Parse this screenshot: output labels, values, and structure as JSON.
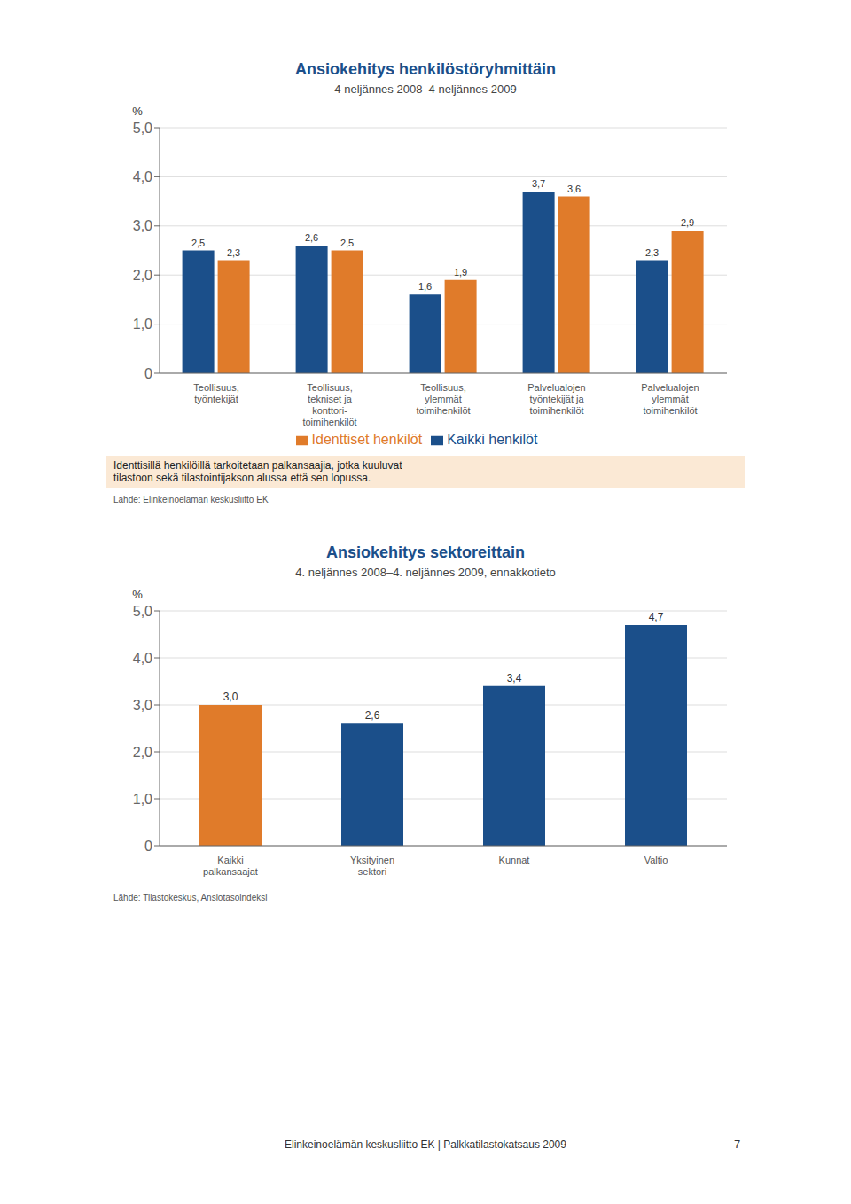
{
  "chart_data": [
    {
      "type": "bar",
      "title": "Ansiokehitys henkilöstöryhmittäin",
      "subtitle": "4 neljännes 2008–4 neljännes 2009",
      "categories": [
        "Teollisuus,\ntyöntekijät",
        "Teollisuus,\ntekniset ja\nkonttori-\ntoimihenkilöt",
        "Teollisuus,\nylemmät\ntoimihenkilöt",
        "Palvelualojen\ntyöntekijät ja\ntoimihenkilöt",
        "Palvelualojen\nylemmät\ntoimihenkilöt"
      ],
      "series": [
        {
          "name": "Kaikki henkilöt",
          "color": "#1b4f8a",
          "values": [
            2.5,
            2.6,
            1.6,
            3.7,
            2.3
          ],
          "value_labels": [
            "2,5",
            "2,6",
            "1,6",
            "3,7",
            "2,3"
          ]
        },
        {
          "name": "Identtiset henkilöt",
          "color": "#e07b2a",
          "values": [
            2.3,
            2.5,
            1.9,
            3.6,
            2.9
          ],
          "value_labels": [
            "2,3",
            "2,5",
            "1,9",
            "3,6",
            "2,9"
          ]
        }
      ],
      "ylabel": "%",
      "ylim": [
        0,
        5.0
      ],
      "yticks": [
        0,
        {
          "value": 1.0,
          "label": "1,0"
        },
        {
          "value": 2.0,
          "label": "2,0"
        },
        {
          "value": 3.0,
          "label": "3,0"
        },
        {
          "value": 4.0,
          "label": "4,0"
        },
        {
          "value": 5.0,
          "label": "5,0"
        }
      ],
      "grid": true,
      "legend": "bottom",
      "data_labels": true,
      "annotations": [
        "Identtisillä henkilöillä tarkoitetaan palkansaajia, jotka kuuluvat\ntilastoon sekä tilastointijakson alussa että sen lopussa.",
        "Lähde: Elinkeinoelämän keskusliitto EK"
      ]
    },
    {
      "type": "bar",
      "title": "Ansiokehitys sektoreittain",
      "subtitle": "4. neljännes 2008–4. neljännes 2009, ennakkotieto",
      "categories": [
        "Kaikki\npalkansaajat",
        "Yksityinen\nsektori",
        "Kunnat",
        "Valtio"
      ],
      "values": [
        3.0,
        2.6,
        3.4,
        4.7
      ],
      "value_labels": [
        "3,0",
        "2,6",
        "3,4",
        "4,7"
      ],
      "colors": [
        "#e07b2a",
        "#1b4f8a",
        "#1b4f8a",
        "#1b4f8a"
      ],
      "ylabel": "%",
      "ylim": [
        0,
        5.0
      ],
      "yticks": [
        0,
        {
          "value": 1.0,
          "label": "1,0"
        },
        {
          "value": 2.0,
          "label": "2,0"
        },
        {
          "value": 3.0,
          "label": "3,0"
        },
        {
          "value": 4.0,
          "label": "4,0"
        },
        {
          "value": 5.0,
          "label": "5,0"
        }
      ],
      "grid": true,
      "data_labels": true,
      "annotations": [
        "Lähde: Tilastokeskus, Ansiotasoindeksi"
      ]
    }
  ],
  "annotations": [
    "Elinkeinoelämän keskusliitto EK  |  Palkkatilastokatsaus 2009",
    "7"
  ]
}
